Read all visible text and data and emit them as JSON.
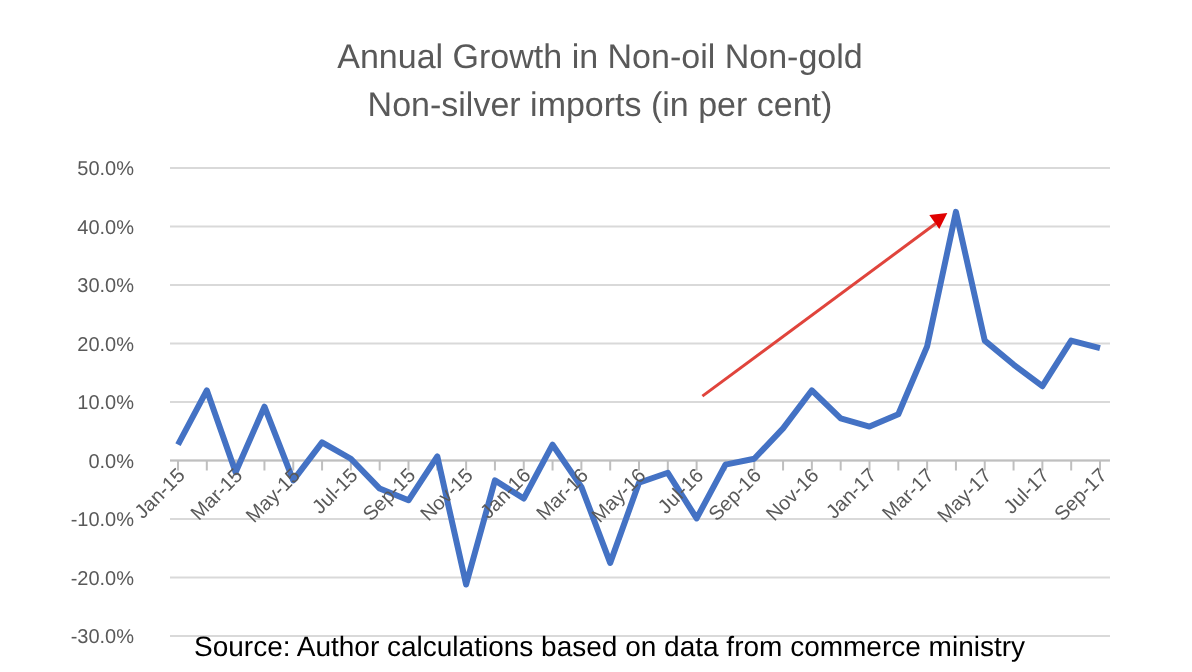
{
  "chart_data": {
    "type": "line",
    "title": "Annual Growth in Non-oil Non-gold Non-silver imports (in per cent)",
    "categories": [
      "Jan-15",
      null,
      "Mar-15",
      null,
      "May-15",
      null,
      "Jul-15",
      null,
      "Sep-15",
      null,
      "Nov-15",
      null,
      "Jan-16",
      null,
      "Mar-16",
      null,
      "May-16",
      null,
      "Jul-16",
      null,
      "Sep-16",
      null,
      "Nov-16",
      null,
      "Jan-17",
      null,
      "Mar-17",
      null,
      "May-17",
      null,
      "Jul-17",
      null,
      "Sep-17"
    ],
    "series": [
      {
        "color": "#4472c4",
        "values": [
          2.7,
          12,
          -2,
          9.2,
          -3.4,
          3.1,
          0.3,
          -4.8,
          -6.8,
          0.7,
          -21.2,
          -3.4,
          -6.5,
          2.7,
          -4.5,
          -17.5,
          -3.8,
          -2.1,
          -9.9,
          -0.7,
          0.3,
          5.5,
          12,
          7.2,
          5.8,
          7.9,
          19.5,
          42.5,
          20.5,
          16.4,
          12.7,
          20.5,
          19.2
        ]
      }
    ],
    "ylim": [
      -30,
      50
    ],
    "yticks": [
      {
        "value": -30,
        "label": "-30.0%"
      },
      {
        "value": -20,
        "label": "-20.0%"
      },
      {
        "value": -10,
        "label": "-10.0%"
      },
      {
        "value": 0,
        "label": "0.0%"
      },
      {
        "value": 10,
        "label": "10.0%"
      },
      {
        "value": 20,
        "label": "20.0%"
      },
      {
        "value": 30,
        "label": "30.0%"
      },
      {
        "value": 40,
        "label": "40.0%"
      },
      {
        "value": 50,
        "label": "50.0%"
      }
    ],
    "grid": "y",
    "marker": "none",
    "line_style": "solid",
    "annotations": [
      "Source: Author calculations based on data from commerce ministry"
    ]
  }
}
